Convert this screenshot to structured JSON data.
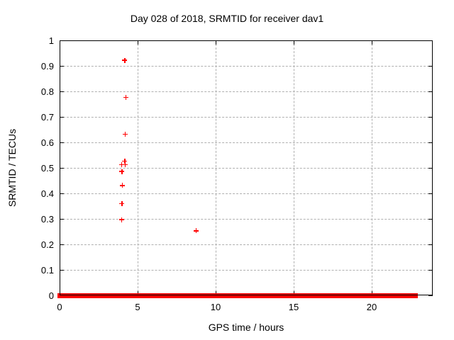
{
  "figure": {
    "title": "Day 028 of 2018, SRMTID for receiver dav1",
    "background_color": "#ffffff",
    "text_color": "#000000",
    "grid_color": "#b0b0b0",
    "marker_color": "#ff0000"
  },
  "chart_data": {
    "type": "scatter",
    "title": "Day 028 of 2018, SRMTID for receiver dav1",
    "xlabel": "GPS time / hours",
    "ylabel": "SRMTID / TECUs",
    "xlim": [
      0,
      23.91
    ],
    "ylim": [
      0,
      1
    ],
    "x_ticks": [
      0,
      5,
      10,
      15,
      20
    ],
    "y_ticks": [
      0,
      0.1,
      0.2,
      0.3,
      0.4,
      0.5,
      0.6,
      0.7,
      0.8,
      0.9,
      1
    ],
    "grid": true,
    "legend": "none",
    "marker": "plus",
    "series": [
      {
        "name": "SRMTID",
        "color": "#ff0000",
        "points": [
          {
            "x": 4.18,
            "y": 0.922
          },
          {
            "x": 4.26,
            "y": 0.777
          },
          {
            "x": 4.21,
            "y": 0.632
          },
          {
            "x": 4.18,
            "y": 0.527
          },
          {
            "x": 3.99,
            "y": 0.513
          },
          {
            "x": 4.21,
            "y": 0.512
          },
          {
            "x": 4.0,
            "y": 0.486
          },
          {
            "x": 4.01,
            "y": 0.431
          },
          {
            "x": 4.0,
            "y": 0.36
          },
          {
            "x": 3.99,
            "y": 0.297
          },
          {
            "x": 8.76,
            "y": 0.253
          }
        ]
      }
    ],
    "zero_value_band_segments": [
      {
        "x_start": 0.0,
        "x_end": 4.16
      },
      {
        "x_start": 4.27,
        "x_end": 11.5
      },
      {
        "x_start": 11.61,
        "x_end": 22.8
      }
    ],
    "zero_band_note": "dense run of zero-valued points along y=0"
  }
}
